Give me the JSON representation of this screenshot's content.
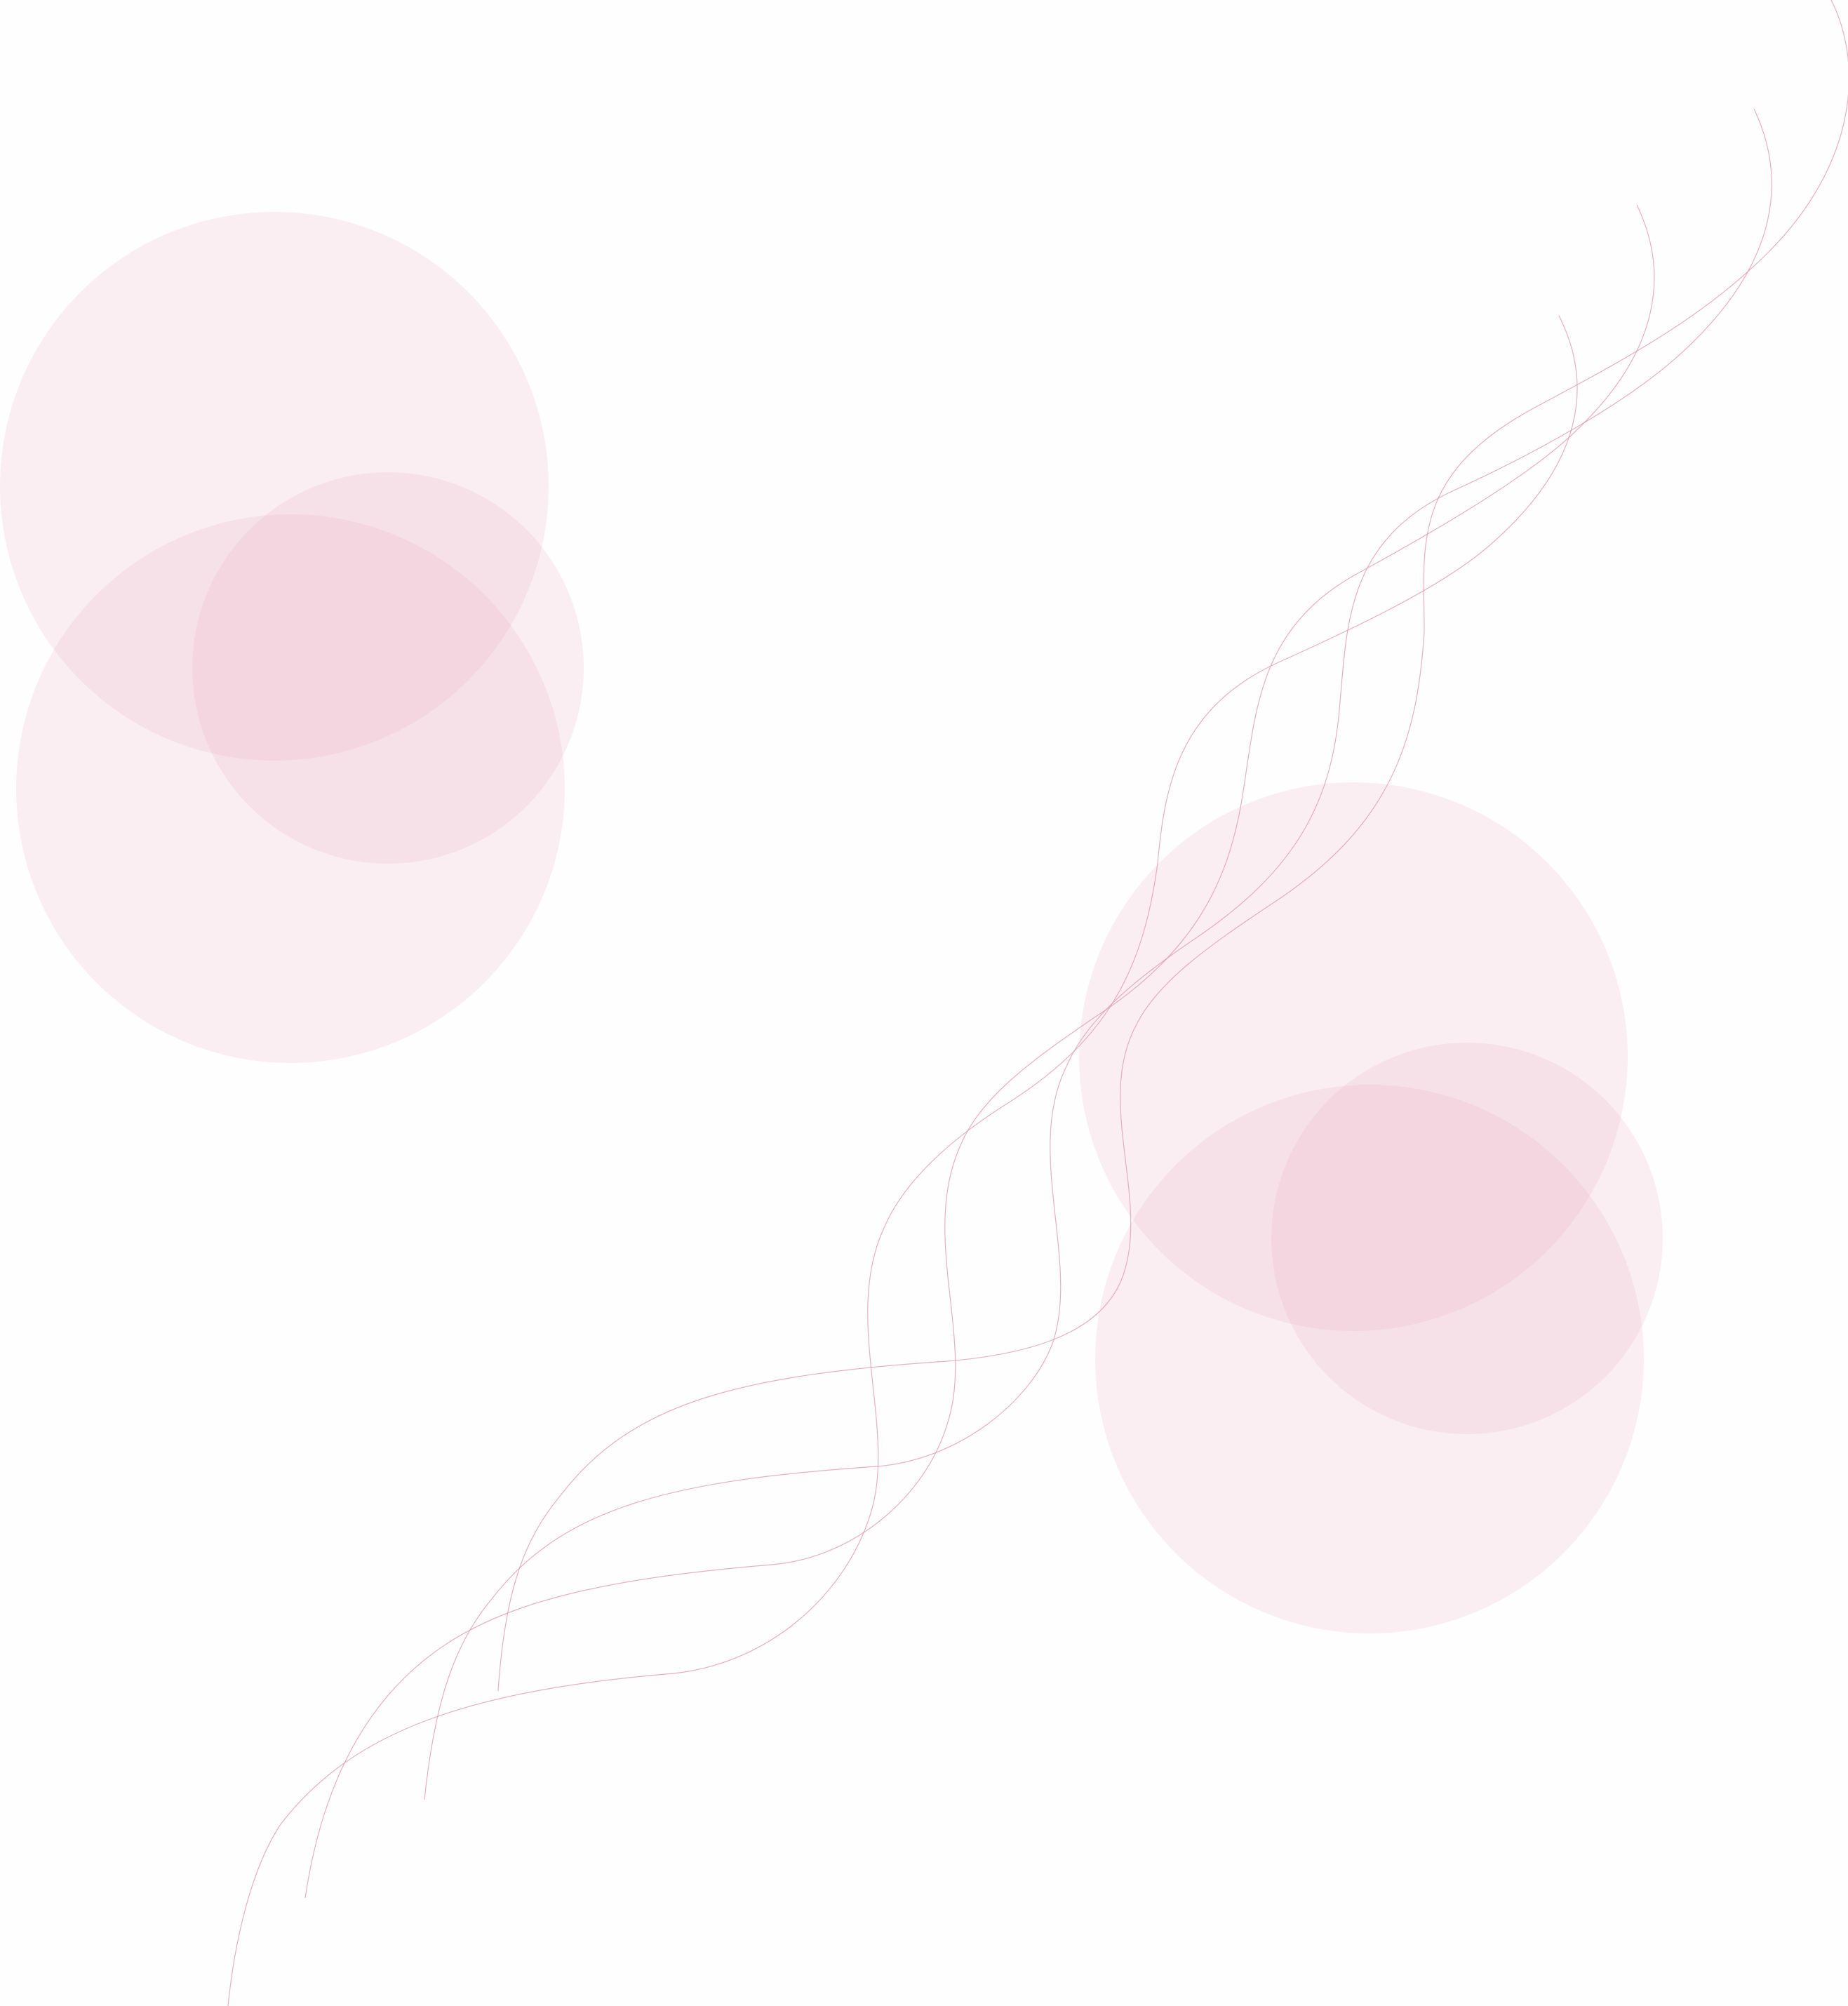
{
  "colors": {
    "background": "#fefefe",
    "circle_fill": "#e8a9bd",
    "wave_stroke": "#dd95ad"
  },
  "decoration": {
    "top_left_circle_group": {
      "circle_count": 3
    },
    "bottom_right_circle_group": {
      "circle_count": 3
    },
    "wave_line_count": 4
  }
}
